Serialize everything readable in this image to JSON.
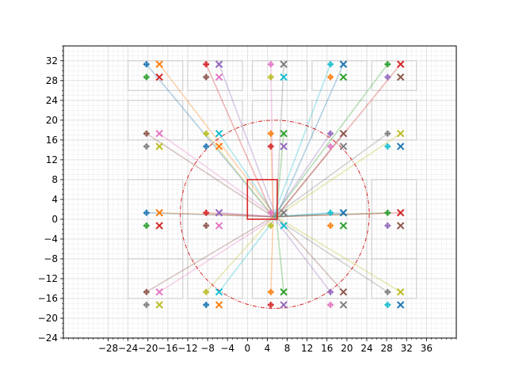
{
  "chart_data": {
    "type": "scatter",
    "title": "",
    "xlabel": "",
    "ylabel": "",
    "xlim": [
      -37,
      42
    ],
    "ylim": [
      -24,
      35
    ],
    "xticks": [
      -28,
      -24,
      -20,
      -16,
      -12,
      -8,
      -4,
      0,
      4,
      8,
      12,
      16,
      20,
      24,
      28,
      32,
      36
    ],
    "yticks": [
      -24,
      -20,
      -16,
      -12,
      -8,
      -4,
      0,
      4,
      8,
      12,
      16,
      20,
      24,
      28,
      32
    ],
    "minor_tick_step": 1,
    "grid": true,
    "legend": "none",
    "hub": [
      5.5,
      0.5
    ],
    "rectangle": {
      "x": 0,
      "y": 0,
      "width": 6,
      "height": 8,
      "color": "#d62728"
    },
    "circle": {
      "center": [
        5.5,
        1
      ],
      "radius": 19,
      "color": "#d62728",
      "style": "dash-dot"
    },
    "marker_clusters": [
      [
        -19,
        30
      ],
      [
        -7,
        30
      ],
      [
        6,
        30
      ],
      [
        18,
        30
      ],
      [
        29.5,
        30
      ],
      [
        -19,
        16
      ],
      [
        -7,
        16
      ],
      [
        6,
        16
      ],
      [
        18,
        16
      ],
      [
        29.5,
        16
      ],
      [
        -19,
        0
      ],
      [
        -7,
        0
      ],
      [
        6,
        0
      ],
      [
        18,
        0
      ],
      [
        29.5,
        0
      ],
      [
        -19,
        -16
      ],
      [
        -7,
        -16
      ],
      [
        6,
        -16
      ],
      [
        18,
        -16
      ],
      [
        29.5,
        -16
      ]
    ],
    "palette": [
      "#1f77b4",
      "#ff7f0e",
      "#2ca02c",
      "#d62728",
      "#9467bd",
      "#8c564b",
      "#e377c2",
      "#7f7f7f",
      "#bcbd22",
      "#17becf"
    ]
  }
}
